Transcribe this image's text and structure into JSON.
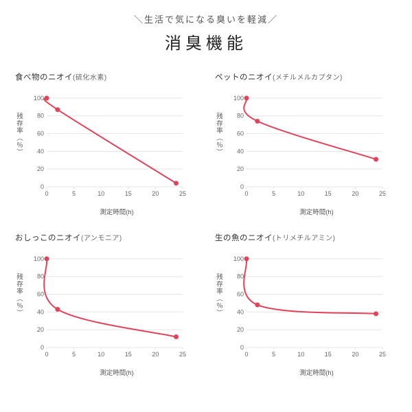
{
  "header": {
    "subtitle": "＼生活で気になる臭いを軽減／",
    "title": "消臭機能"
  },
  "common": {
    "ylabel": "残存率（％）",
    "xlabel": "測定時間(h)",
    "xlim": [
      0,
      25
    ],
    "ylim": [
      0,
      110
    ],
    "xticks": [
      0,
      5,
      10,
      15,
      20,
      25
    ],
    "yticks": [
      0,
      20,
      40,
      60,
      80,
      100
    ],
    "grid_color": "#e4e4e4",
    "axis_color": "#e4e4e4",
    "tick_label_color": "#666666",
    "tick_fontsize": 9,
    "line_color": "#e1435a",
    "marker_color": "#e1435a",
    "line_width": 2,
    "marker_radius": 3.5,
    "background": "#ffffff"
  },
  "panels": [
    {
      "title_main": "食べ物のニオイ",
      "title_sub": "(硫化水素)",
      "x": [
        0,
        2,
        23.8
      ],
      "y": [
        100,
        87,
        4
      ]
    },
    {
      "title_main": "ペットのニオイ",
      "title_sub": "(メチルメルカプタン)",
      "x": [
        0,
        2,
        23.8
      ],
      "y": [
        100,
        74,
        31
      ]
    },
    {
      "title_main": "おしっこのニオイ",
      "title_sub": "(アンモニア)",
      "x": [
        0,
        2,
        23.8
      ],
      "y": [
        100,
        43,
        12
      ]
    },
    {
      "title_main": "生の魚のニオイ",
      "title_sub": "(トリメチルアミン)",
      "x": [
        0,
        2,
        23.8
      ],
      "y": [
        100,
        48,
        38
      ]
    }
  ]
}
